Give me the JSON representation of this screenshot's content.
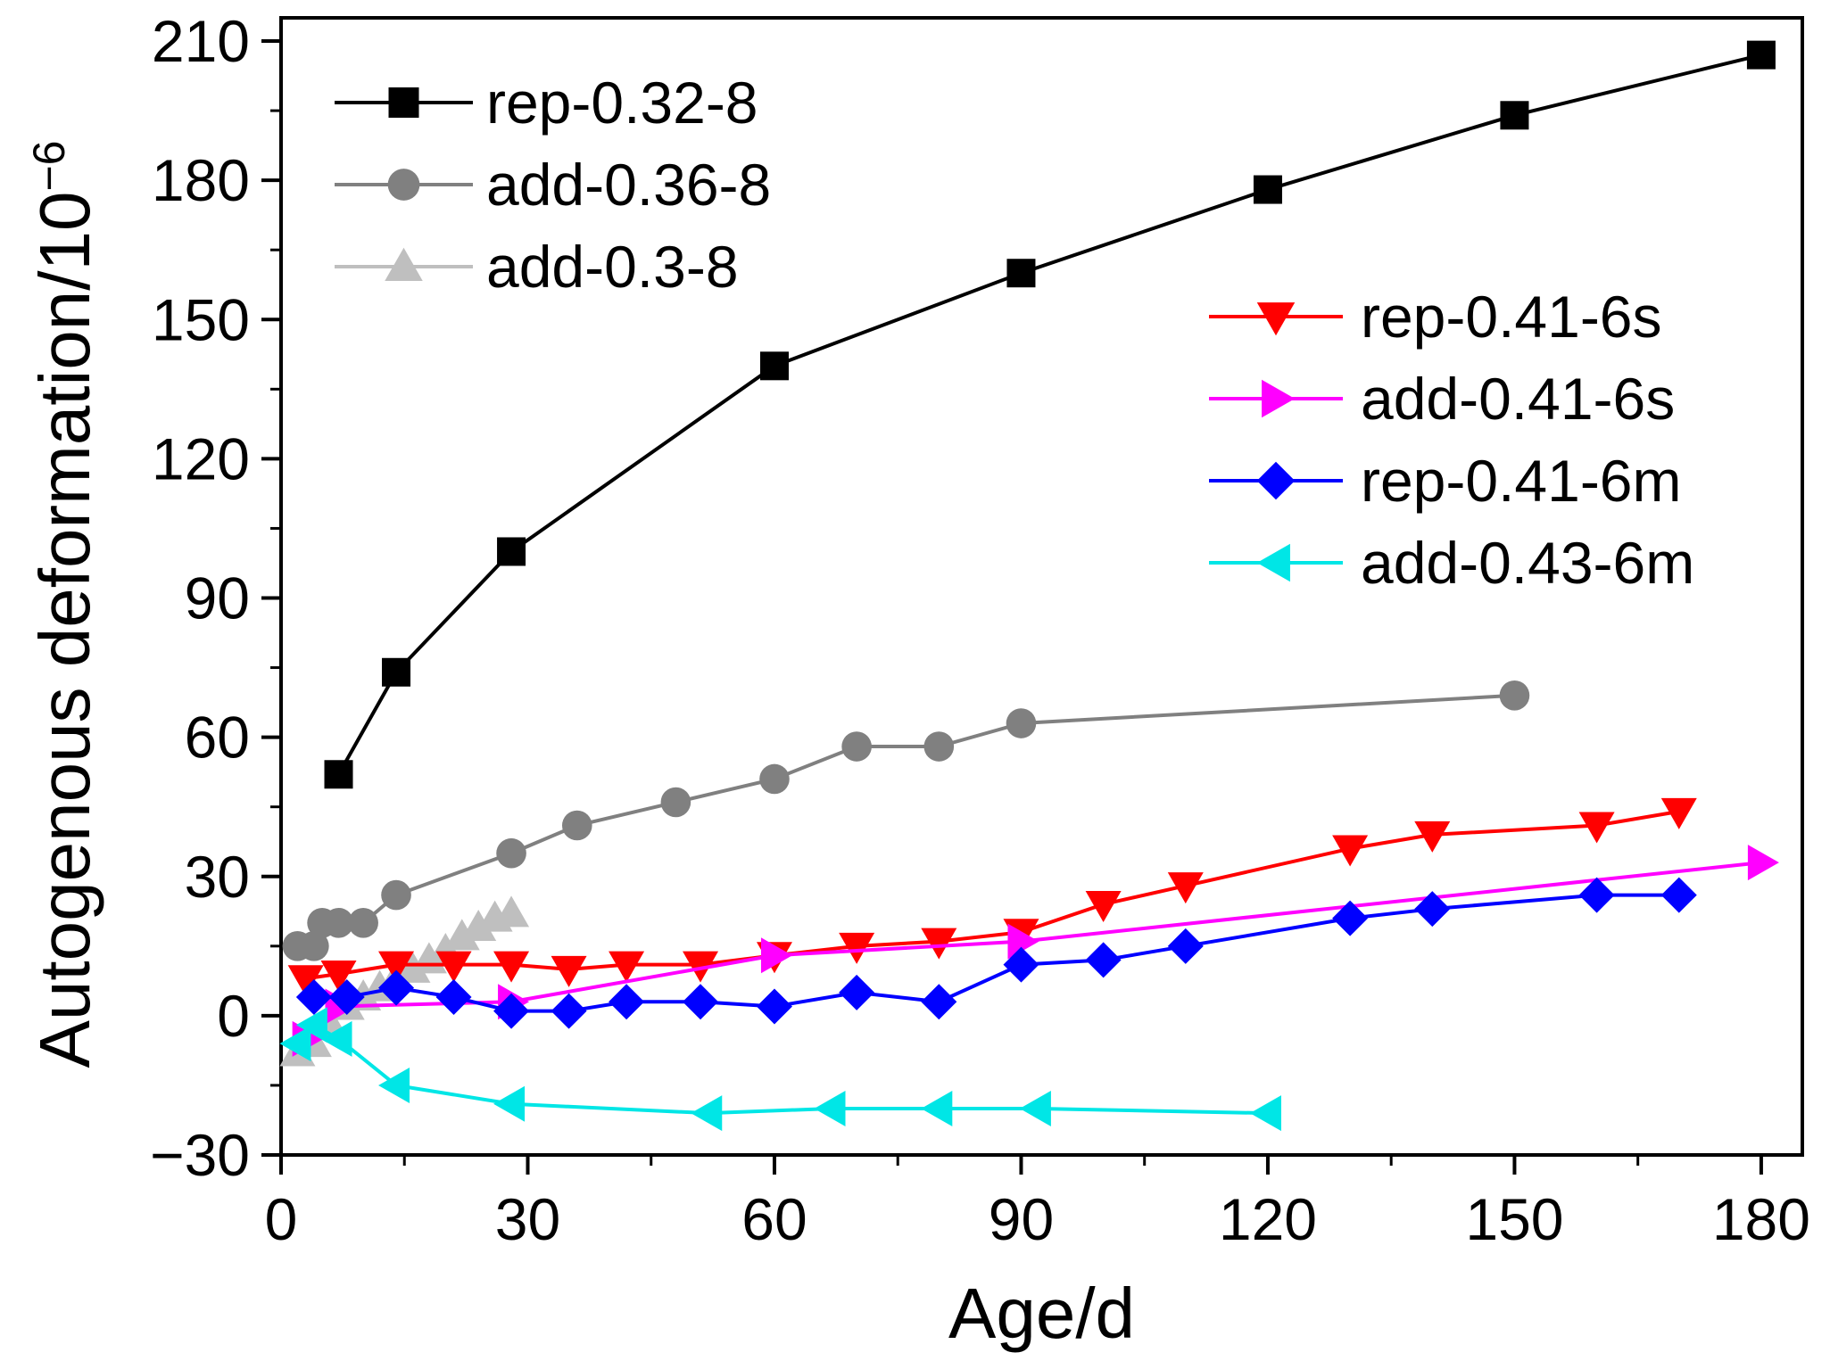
{
  "chart_data": {
    "type": "line",
    "xlabel": "Age/d",
    "ylabel": "Autogenous deformation/10",
    "ylabel_exponent": "−6",
    "xlim": [
      0,
      185
    ],
    "ylim": [
      -30,
      215
    ],
    "xticks": [
      0,
      30,
      60,
      90,
      120,
      150,
      180
    ],
    "xtick_labels": [
      "0",
      "30",
      "60",
      "90",
      "120",
      "150",
      "180"
    ],
    "yticks": [
      -30,
      0,
      30,
      60,
      90,
      120,
      150,
      180,
      210
    ],
    "ytick_labels": [
      "−30",
      "0",
      "30",
      "60",
      "90",
      "120",
      "150",
      "180",
      "210"
    ],
    "grid": false,
    "legend_placement": [
      "top-left",
      "right"
    ],
    "series": [
      {
        "name": "rep-0.32-8",
        "color": "#000000",
        "marker": "square",
        "legend_group": "top-left",
        "x": [
          7,
          14,
          28,
          60,
          90,
          120,
          150,
          180
        ],
        "y": [
          52,
          74,
          100,
          140,
          160,
          178,
          194,
          207
        ]
      },
      {
        "name": "add-0.36-8",
        "color": "#808080",
        "marker": "circle",
        "legend_group": "top-left",
        "x": [
          2,
          4,
          5,
          7,
          10,
          14,
          28,
          36,
          48,
          60,
          70,
          80,
          90,
          150
        ],
        "y": [
          15,
          15,
          20,
          20,
          20,
          26,
          35,
          41,
          46,
          51,
          58,
          58,
          63,
          69
        ]
      },
      {
        "name": "add-0.3-8",
        "color": "#bfbfbf",
        "marker": "triangle-up",
        "legend_group": "top-left",
        "x": [
          2,
          4,
          6,
          8,
          10,
          12,
          14,
          16,
          18,
          20,
          22,
          24,
          26,
          28
        ],
        "y": [
          -8,
          -6,
          -2,
          2,
          4,
          6,
          8,
          10,
          12,
          14,
          17,
          19,
          21,
          22
        ]
      },
      {
        "name": "rep-0.41-6s",
        "color": "#ff0000",
        "marker": "triangle-down",
        "legend_group": "right",
        "x": [
          3,
          7,
          14,
          21,
          28,
          35,
          42,
          51,
          60,
          70,
          80,
          90,
          100,
          110,
          130,
          140,
          160,
          170
        ],
        "y": [
          8,
          9,
          11,
          11,
          11,
          10,
          11,
          11,
          13,
          15,
          16,
          18,
          24,
          28,
          36,
          39,
          41,
          44
        ]
      },
      {
        "name": "add-0.41-6s",
        "color": "#ff00ff",
        "marker": "triangle-right",
        "legend_group": "right",
        "x": [
          3,
          7,
          28,
          60,
          90,
          180
        ],
        "y": [
          -5,
          2,
          3,
          13,
          16,
          33
        ]
      },
      {
        "name": "rep-0.41-6m",
        "color": "#0000ff",
        "marker": "diamond",
        "legend_group": "right",
        "x": [
          4,
          8,
          14,
          21,
          28,
          35,
          42,
          51,
          60,
          70,
          80,
          90,
          100,
          110,
          130,
          140,
          160,
          170
        ],
        "y": [
          4,
          4,
          6,
          4,
          1,
          1,
          3,
          3,
          2,
          5,
          3,
          11,
          12,
          15,
          21,
          23,
          26,
          26
        ]
      },
      {
        "name": "add-0.43-6m",
        "color": "#00e6e6",
        "marker": "triangle-left",
        "legend_group": "right",
        "x": [
          2,
          4,
          7,
          14,
          28,
          52,
          67,
          80,
          92,
          120
        ],
        "y": [
          -6,
          -2,
          -5,
          -15,
          -19,
          -21,
          -20,
          -20,
          -20,
          -21
        ]
      }
    ]
  }
}
